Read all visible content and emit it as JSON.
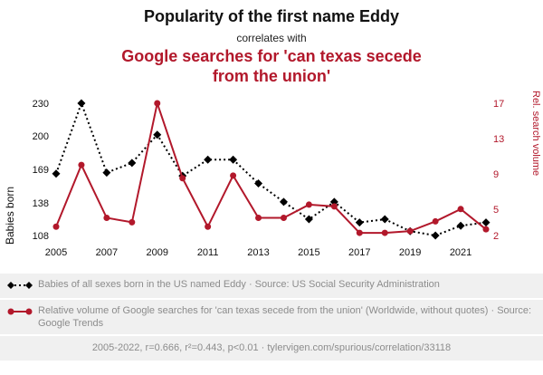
{
  "header": {
    "title": "Popularity of the first name Eddy",
    "connector": "correlates with",
    "correlated_title": "Google searches for 'can texas secede from the union'"
  },
  "colors": {
    "series_black": "#000000",
    "accent_red": "#b2182b",
    "text_gray": "#8c8c8c",
    "panel_gray": "#f0f0f0"
  },
  "chart_data": {
    "type": "line",
    "x": [
      2005,
      2006,
      2007,
      2008,
      2009,
      2010,
      2011,
      2012,
      2013,
      2014,
      2015,
      2016,
      2017,
      2018,
      2019,
      2020,
      2021,
      2022
    ],
    "x_ticks": [
      2005,
      2007,
      2009,
      2011,
      2013,
      2015,
      2017,
      2019,
      2021
    ],
    "grid": false,
    "legend_position": "bottom",
    "left_axis": {
      "label": "Babies born",
      "min": 108,
      "max": 230,
      "ticks": [
        230,
        200,
        169,
        138,
        108
      ]
    },
    "right_axis": {
      "label": "Rel. search volume",
      "min": 2,
      "max": 17,
      "ticks": [
        17,
        13,
        9,
        5,
        2
      ]
    },
    "series": [
      {
        "name": "Babies of all sexes born in the US named Eddy",
        "axis": "left",
        "color": "#000000",
        "style": "dashed-diamond",
        "values": [
          165,
          230,
          166,
          175,
          201,
          163,
          178,
          178,
          156,
          139,
          123,
          139,
          120,
          123,
          112,
          108,
          117,
          120
        ]
      },
      {
        "name": "Relative volume of Google searches for 'can texas secede from the union'",
        "axis": "right",
        "color": "#b2182b",
        "style": "solid-circle",
        "values": [
          3,
          10,
          4,
          3.5,
          17,
          8.5,
          3,
          8.8,
          4,
          4,
          5.5,
          5.3,
          2.3,
          2.3,
          2.5,
          3.6,
          5,
          2.7
        ]
      }
    ]
  },
  "legend": [
    {
      "marker": "black-dashed-diamond",
      "text": "Babies of all sexes born in the US named Eddy · Source: US Social Security Administration"
    },
    {
      "marker": "red-solid-circle",
      "text": "Relative volume of Google searches for 'can texas secede from the union' (Worldwide, without quotes) · Source: Google Trends"
    }
  ],
  "footer": {
    "text": "2005-2022, r=0.666, r²=0.443, p<0.01 · tylervigen.com/spurious/correlation/33118"
  }
}
